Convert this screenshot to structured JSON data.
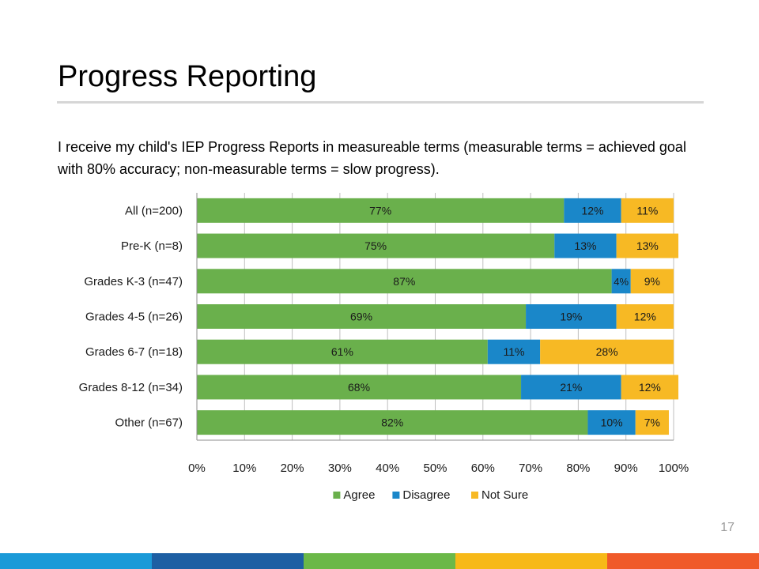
{
  "slide": {
    "title": "Progress Reporting",
    "subtitle": "I receive my child's IEP Progress Reports in measureable terms (measurable terms = achieved goal with 80% accuracy; non-measurable terms = slow progress).",
    "page_number": "17"
  },
  "footer_colors": [
    "#1b9ad8",
    "#1d5fa3",
    "#6bb848",
    "#f7b918",
    "#f05a2a"
  ],
  "chart_data": {
    "type": "bar",
    "orientation": "horizontal",
    "stacked": true,
    "categories": [
      "All (n=200)",
      "Pre-K (n=8)",
      "Grades K-3 (n=47)",
      "Grades 4-5 (n=26)",
      "Grades 6-7 (n=18)",
      "Grades 8-12 (n=34)",
      "Other (n=67)"
    ],
    "series": [
      {
        "name": "Agree",
        "color": "#6ab04c",
        "values": [
          77,
          75,
          87,
          69,
          61,
          68,
          82
        ]
      },
      {
        "name": "Disagree",
        "color": "#1a87c9",
        "values": [
          12,
          13,
          4,
          19,
          11,
          21,
          10
        ]
      },
      {
        "name": "Not Sure",
        "color": "#f7b924",
        "values": [
          11,
          13,
          9,
          12,
          28,
          12,
          7
        ]
      }
    ],
    "xlim": [
      0,
      100
    ],
    "xticks": [
      "0%",
      "10%",
      "20%",
      "30%",
      "40%",
      "50%",
      "60%",
      "70%",
      "80%",
      "90%",
      "100%"
    ],
    "data_label_suffix": "%",
    "grid": true,
    "legend": "bottom"
  }
}
